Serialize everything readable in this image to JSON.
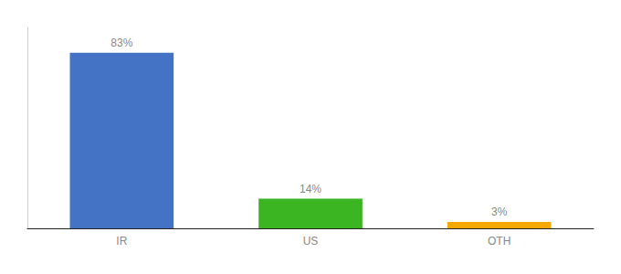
{
  "chart_data": {
    "type": "bar",
    "categories": [
      "IR",
      "US",
      "OTH"
    ],
    "values": [
      83,
      14,
      3
    ],
    "value_labels": [
      "83%",
      "14%",
      "3%"
    ],
    "colors": [
      "#4472c4",
      "#3cb523",
      "#f5a800"
    ],
    "ylim": [
      0,
      95
    ],
    "grid": false,
    "data_labels": true,
    "tick_labels": "x"
  }
}
